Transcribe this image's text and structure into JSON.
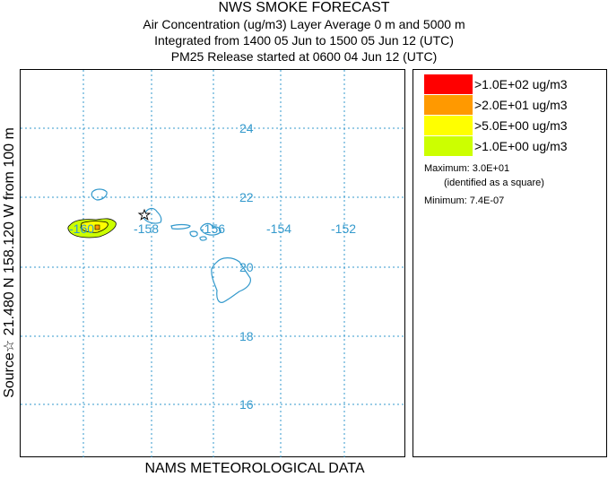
{
  "header": {
    "title": "NWS SMOKE FORECAST",
    "line1": "Air Concentration (ug/m3) Layer Average    0 m and  5000 m",
    "line2": "Integrated from 1400 05 Jun to 1500 05 Jun 12 (UTC)",
    "line3": "PM25 Release started at 0600 04 Jun 12 (UTC)"
  },
  "side_label": "Source☆ 21.480 N 158.120 W   from  100 m",
  "footer": "NAMS METEOROLOGICAL DATA",
  "map": {
    "grid_color": "#3399cc",
    "coastline_color": "#3399cc",
    "longitude_labels": [
      "-160",
      "-158",
      "-156",
      "-154",
      "-152"
    ],
    "latitude_labels": [
      "24",
      "22",
      "20",
      "18",
      "16"
    ],
    "source_marker": "star-icon",
    "max_marker": "square-icon",
    "plume": [
      {
        "level": "≥1.0E+00",
        "color": "#ccff00"
      },
      {
        "level": "≥5.0E+00",
        "color": "#ffff00"
      }
    ]
  },
  "legend": {
    "entries": [
      {
        "label": ">1.0E+02 ug/m3",
        "color": "#ff0000"
      },
      {
        "label": ">2.0E+01 ug/m3",
        "color": "#ff9900"
      },
      {
        "label": ">5.0E+00 ug/m3",
        "color": "#ffff00"
      },
      {
        "label": ">1.0E+00 ug/m3",
        "color": "#ccff00"
      }
    ],
    "maximum": "Maximum: 3.0E+01",
    "maximum_note": "(identified as a square)",
    "minimum": "Minimum: 7.4E-07"
  }
}
